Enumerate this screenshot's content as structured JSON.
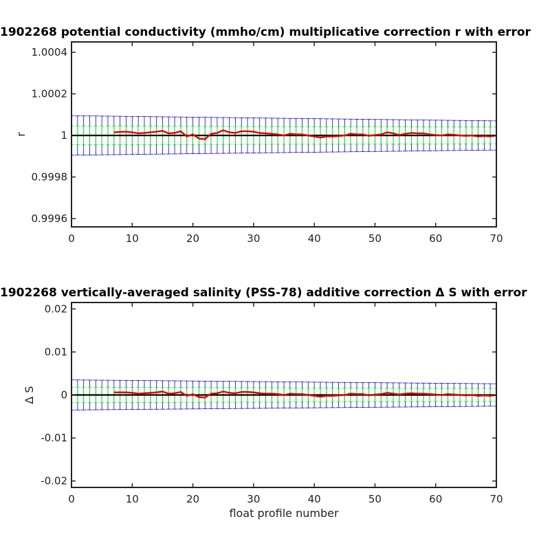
{
  "chart_data": [
    {
      "type": "line",
      "title": "1902268 potential conductivity (mmho/cm) multiplicative correction r with error",
      "xlabel": "",
      "ylabel": "r",
      "xlim": [
        0,
        70
      ],
      "ylim": [
        0.99956,
        1.00045
      ],
      "xticks": [
        "0",
        "10",
        "20",
        "30",
        "40",
        "50",
        "60",
        "70"
      ],
      "yticks": [
        "0.9996",
        "0.9998",
        "1",
        "1.0002",
        "1.0004"
      ],
      "ytick_values": [
        0.9996,
        0.9998,
        1.0,
        1.0002,
        1.0004
      ],
      "grid": false,
      "series": [
        {
          "role": "reference",
          "color": "#000000",
          "x": [
            0,
            70
          ],
          "y": [
            1.0,
            1.0
          ]
        },
        {
          "role": "correction",
          "color": "#e00000",
          "x": [
            7,
            8,
            9,
            10,
            11,
            12,
            13,
            14,
            15,
            16,
            17,
            18,
            19,
            20,
            21,
            22,
            23,
            24,
            25,
            26,
            27,
            28,
            29,
            30,
            31,
            32,
            33,
            34,
            35,
            36,
            37,
            38,
            39,
            40,
            41,
            42,
            43,
            44,
            45,
            46,
            47,
            48,
            49,
            50,
            51,
            52,
            53,
            54,
            55,
            56,
            57,
            58,
            59,
            60,
            61,
            62,
            63,
            64,
            65,
            66,
            67,
            68,
            69,
            70
          ],
          "y": [
            1.000015,
            1.000017,
            1.000018,
            1.000015,
            1.00001,
            1.000012,
            1.000015,
            1.000018,
            1.000022,
            1.00001,
            1.000012,
            1.00002,
            0.999995,
            1.000005,
            0.999985,
            0.999982,
            1.000008,
            1.000012,
            1.000025,
            1.000015,
            1.000012,
            1.00002,
            1.00002,
            1.000018,
            1.000012,
            1.00001,
            1.000008,
            1.000005,
            1.0,
            1.000008,
            1.000005,
            1.000005,
            1.0,
            0.999995,
            0.99999,
            0.999995,
            0.999995,
            0.999997,
            1.0,
            1.000008,
            1.000005,
            1.000005,
            0.999998,
            1.000002,
            1.000005,
            1.000015,
            1.00001,
            1.000002,
            1.000008,
            1.000012,
            1.00001,
            1.00001,
            1.000005,
            1.000002,
            1.0,
            1.000005,
            1.000003,
            1.0,
            0.999998,
            1.0,
            0.999995,
            0.999997,
            0.999995,
            1.0
          ]
        }
      ],
      "error_bands": [
        {
          "role": "total",
          "color": "#0000cc",
          "x": [
            0,
            70
          ],
          "halfwidth": [
            9.5e-05,
            7e-05
          ],
          "bar_spacing": 1
        },
        {
          "role": "fit",
          "color": "#00ee00",
          "x": [
            0,
            70
          ],
          "halfwidth": [
            4.5e-05,
            4e-05
          ],
          "bar_spacing": 1
        }
      ]
    },
    {
      "type": "line",
      "title": "1902268 vertically-averaged salinity (PSS-78) additive correction Δ S with error",
      "xlabel": "float profile number",
      "ylabel": "Δ S",
      "xlim": [
        0,
        70
      ],
      "ylim": [
        -0.0215,
        0.0215
      ],
      "xticks": [
        "0",
        "10",
        "20",
        "30",
        "40",
        "50",
        "60",
        "70"
      ],
      "yticks": [
        "-0.02",
        "-0.01",
        "0",
        "0.01",
        "0.02"
      ],
      "ytick_values": [
        -0.02,
        -0.01,
        0,
        0.01,
        0.02
      ],
      "grid": false,
      "series": [
        {
          "role": "reference",
          "color": "#000000",
          "x": [
            0,
            70
          ],
          "y": [
            0,
            0
          ]
        },
        {
          "role": "correction",
          "color": "#e00000",
          "x": [
            7,
            8,
            9,
            10,
            11,
            12,
            13,
            14,
            15,
            16,
            17,
            18,
            19,
            20,
            21,
            22,
            23,
            24,
            25,
            26,
            27,
            28,
            29,
            30,
            31,
            32,
            33,
            34,
            35,
            36,
            37,
            38,
            39,
            40,
            41,
            42,
            43,
            44,
            45,
            46,
            47,
            48,
            49,
            50,
            51,
            52,
            53,
            54,
            55,
            56,
            57,
            58,
            59,
            60,
            61,
            62,
            63,
            64,
            65,
            66,
            67,
            68,
            69,
            70
          ],
          "y": [
            0.0006,
            0.0006,
            0.0006,
            0.0005,
            0.0003,
            0.0004,
            0.0005,
            0.0006,
            0.0008,
            0.0003,
            0.0004,
            0.0007,
            -0.0002,
            0.0002,
            -0.0005,
            -0.0006,
            0.0003,
            0.0004,
            0.0008,
            0.0005,
            0.0004,
            0.0007,
            0.0007,
            0.0006,
            0.0004,
            0.0003,
            0.0003,
            0.0002,
            0.0,
            0.0003,
            0.0002,
            0.0002,
            0.0,
            -0.0002,
            -0.0004,
            -0.0002,
            -0.0002,
            -0.0001,
            0.0,
            0.0003,
            0.0002,
            0.0002,
            -0.0001,
            0.0001,
            0.0002,
            0.0005,
            0.0003,
            0.0001,
            0.0003,
            0.0004,
            0.0003,
            0.0003,
            0.0002,
            0.0001,
            0.0,
            0.0002,
            0.0001,
            0.0,
            -0.0001,
            0.0,
            -0.0002,
            -0.0001,
            -0.0002,
            0.0
          ]
        }
      ],
      "error_bands": [
        {
          "role": "total",
          "color": "#0000cc",
          "x": [
            0,
            70
          ],
          "halfwidth": [
            0.0035,
            0.0026
          ],
          "bar_spacing": 1
        },
        {
          "role": "fit",
          "color": "#00ee00",
          "x": [
            0,
            70
          ],
          "halfwidth": [
            0.0018,
            0.0015
          ],
          "bar_spacing": 1
        }
      ]
    }
  ]
}
